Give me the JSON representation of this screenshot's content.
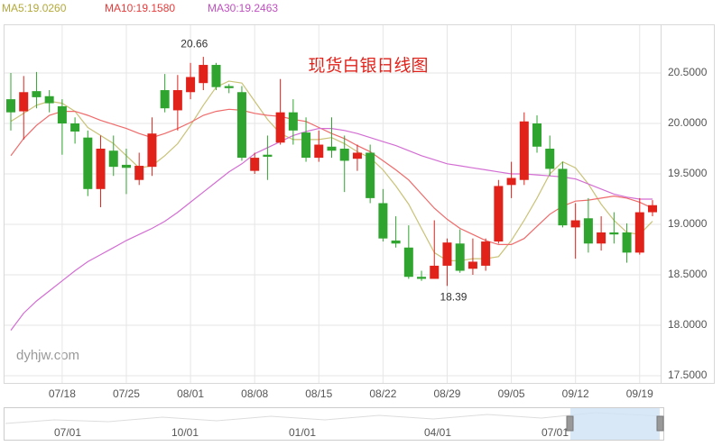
{
  "chart_data": {
    "type": "candlestick",
    "title": "现货白银日线图",
    "watermark": "dyhjw.com",
    "categories": [
      null,
      null,
      null,
      null,
      "07/18",
      null,
      null,
      null,
      null,
      "07/25",
      null,
      null,
      null,
      null,
      "08/01",
      null,
      null,
      null,
      null,
      "08/08",
      null,
      null,
      null,
      null,
      "08/15",
      null,
      null,
      null,
      null,
      "08/22",
      null,
      null,
      null,
      null,
      "08/29",
      null,
      null,
      null,
      null,
      "09/05",
      null,
      null,
      null,
      null,
      "09/12",
      null,
      null,
      null,
      null,
      "09/19",
      null
    ],
    "open": [
      20.24,
      20.12,
      20.32,
      20.27,
      20.17,
      20.0,
      19.86,
      19.35,
      19.73,
      19.59,
      19.44,
      19.57,
      20.33,
      20.13,
      20.31,
      20.4,
      20.58,
      20.37,
      20.31,
      19.53,
      19.69,
      19.81,
      20.11,
      19.91,
      19.66,
      19.77,
      19.75,
      19.65,
      19.71,
      19.21,
      18.84,
      18.77,
      18.48,
      18.46,
      18.59,
      18.81,
      18.56,
      18.59,
      18.83,
      19.39,
      19.44,
      20.0,
      19.75,
      19.55,
      18.97,
      19.06,
      18.81,
      18.92,
      18.92,
      18.72,
      19.12
    ],
    "close": [
      20.11,
      20.31,
      20.26,
      20.2,
      20.0,
      19.92,
      19.35,
      19.75,
      19.57,
      19.56,
      19.58,
      19.9,
      20.15,
      20.33,
      20.46,
      20.58,
      20.36,
      20.35,
      19.66,
      19.66,
      19.67,
      20.11,
      19.93,
      19.66,
      19.79,
      19.73,
      19.63,
      19.71,
      19.26,
      18.86,
      18.81,
      18.48,
      18.46,
      18.59,
      18.82,
      18.54,
      18.63,
      18.83,
      19.38,
      19.46,
      20.02,
      19.77,
      19.55,
      18.99,
      19.04,
      18.81,
      18.92,
      18.9,
      18.72,
      19.12,
      19.19
    ],
    "high": [
      20.5,
      20.47,
      20.51,
      20.33,
      20.24,
      20.06,
      19.93,
      19.88,
      19.88,
      19.75,
      19.71,
      20.06,
      20.49,
      20.48,
      20.6,
      20.66,
      20.6,
      20.39,
      20.37,
      19.71,
      19.88,
      20.44,
      20.24,
      20.06,
      19.93,
      20.06,
      19.88,
      19.79,
      19.79,
      19.35,
      19.08,
      18.99,
      18.54,
      19.04,
      18.86,
      18.95,
      18.86,
      18.86,
      19.44,
      19.62,
      20.11,
      20.08,
      19.88,
      19.62,
      19.21,
      19.26,
      19.08,
      19.12,
      19.01,
      19.26,
      19.24
    ],
    "low": [
      19.93,
      19.84,
      20.15,
      20.11,
      19.69,
      19.8,
      19.28,
      19.17,
      19.48,
      19.3,
      19.39,
      19.48,
      20.11,
      19.93,
      20.24,
      20.33,
      20.33,
      20.3,
      19.63,
      19.5,
      19.44,
      19.79,
      19.79,
      19.62,
      19.62,
      19.66,
      19.32,
      19.53,
      19.21,
      18.83,
      18.77,
      18.46,
      18.44,
      18.46,
      18.39,
      18.52,
      18.5,
      18.54,
      18.81,
      19.26,
      19.39,
      19.71,
      19.48,
      18.97,
      18.66,
      18.72,
      18.74,
      18.81,
      18.62,
      18.7,
      19.08
    ],
    "up_color": "#e0221b",
    "down_color": "#2fa52f",
    "series": [
      {
        "name": "MA5:19.0260",
        "color": "#c9c277",
        "legend_color": "#b3a93a",
        "values": [
          20.02,
          20.1,
          20.18,
          20.22,
          20.2,
          20.12,
          19.96,
          19.88,
          19.8,
          19.68,
          19.56,
          19.58,
          19.68,
          19.8,
          19.98,
          20.18,
          20.36,
          20.42,
          20.4,
          20.22,
          20.04,
          19.9,
          19.84,
          19.84,
          19.84,
          19.86,
          19.8,
          19.72,
          19.66,
          19.54,
          19.38,
          19.2,
          18.96,
          18.72,
          18.64,
          18.64,
          18.66,
          18.66,
          18.68,
          18.84,
          19.04,
          19.26,
          19.5,
          19.62,
          19.56,
          19.4,
          19.2,
          19.04,
          18.92,
          18.9,
          19.03
        ]
      },
      {
        "name": "MA10:19.1580",
        "color": "#ef6a6a",
        "legend_color": "#e63a3a",
        "values": [
          19.68,
          19.85,
          19.98,
          20.08,
          20.12,
          20.12,
          20.08,
          20.03,
          19.99,
          19.95,
          19.9,
          19.86,
          19.9,
          19.95,
          20.01,
          20.08,
          20.12,
          20.14,
          20.13,
          20.1,
          20.08,
          20.07,
          20.04,
          20.02,
          19.96,
          19.9,
          19.85,
          19.78,
          19.72,
          19.63,
          19.54,
          19.44,
          19.3,
          19.16,
          19.05,
          18.96,
          18.9,
          18.84,
          18.8,
          18.8,
          18.86,
          18.98,
          19.1,
          19.18,
          19.23,
          19.24,
          19.26,
          19.28,
          19.26,
          19.22,
          19.16
        ]
      },
      {
        "name": "MA30:19.2463",
        "color": "#d36ed3",
        "legend_color": "#c050c0",
        "values": [
          17.95,
          18.12,
          18.24,
          18.34,
          18.44,
          18.54,
          18.63,
          18.7,
          18.77,
          18.84,
          18.9,
          18.96,
          19.03,
          19.12,
          19.22,
          19.32,
          19.42,
          19.52,
          19.6,
          19.7,
          19.76,
          19.82,
          19.88,
          19.92,
          19.95,
          19.95,
          19.93,
          19.9,
          19.86,
          19.82,
          19.78,
          19.73,
          19.68,
          19.64,
          19.6,
          19.58,
          19.56,
          19.54,
          19.52,
          19.5,
          19.5,
          19.49,
          19.48,
          19.47,
          19.45,
          19.4,
          19.35,
          19.3,
          19.27,
          19.25,
          19.25
        ]
      }
    ],
    "max_label": {
      "value": 20.66,
      "label": "20.66"
    },
    "min_label": {
      "value": 18.39,
      "label": "18.39"
    },
    "ylim": [
      17.5,
      21.0
    ],
    "yticks": [
      {
        "value": 17.5,
        "label": "17.5000"
      },
      {
        "value": 18,
        "label": "18.0000"
      },
      {
        "value": 18.5,
        "label": "18.5000"
      },
      {
        "value": 19,
        "label": "19.0000"
      },
      {
        "value": 19.5,
        "label": "19.5000"
      },
      {
        "value": 20,
        "label": "20.0000"
      },
      {
        "value": 20.5,
        "label": "20.5000"
      }
    ],
    "grid": true,
    "navigator": {
      "labels": [
        "07/01",
        "10/01",
        "01/01",
        "04/01",
        "07/01"
      ]
    }
  }
}
